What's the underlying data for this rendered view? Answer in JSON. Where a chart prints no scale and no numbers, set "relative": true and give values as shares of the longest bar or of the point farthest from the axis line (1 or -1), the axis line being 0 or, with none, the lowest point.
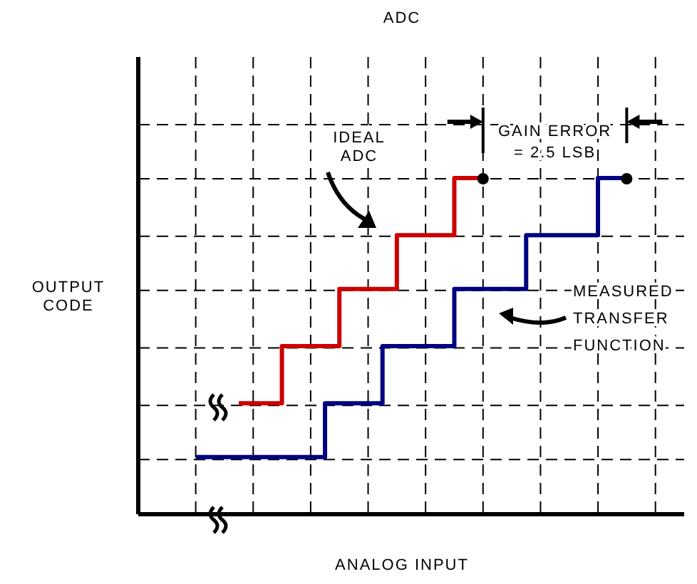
{
  "chart_data": {
    "type": "step",
    "title": "ADC",
    "xlabel": "ANALOG INPUT",
    "ylabel": "OUTPUT CODE",
    "relative": true,
    "categories": [
      null,
      null,
      null,
      null,
      null,
      null,
      null,
      null,
      null,
      null,
      null,
      null,
      null,
      null,
      null,
      null,
      null,
      null,
      null,
      null,
      null,
      null,
      null,
      null,
      null,
      null,
      null,
      null,
      null,
      null,
      null,
      null,
      null,
      null,
      null,
      null,
      null,
      null,
      null
    ],
    "grid": true,
    "marker": "none",
    "line_style": "solid",
    "series": [
      {
        "color": "#cc0000",
        "values": [
          null,
          null,
          null,
          null,
          null,
          null,
          null,
          0.33,
          0.33,
          0.33,
          0.5,
          0.5,
          0.5,
          0.5,
          0.67,
          0.67,
          0.67,
          0.67,
          0.83,
          0.83,
          0.83,
          0.83,
          1,
          1,
          1,
          null,
          null,
          null,
          null,
          null,
          null,
          null,
          null,
          null,
          null,
          null,
          null,
          null,
          null
        ]
      },
      {
        "color": "#000080",
        "values": [
          null,
          null,
          null,
          null,
          0.17,
          0.17,
          0.17,
          0.17,
          0.17,
          0.17,
          0.17,
          0.17,
          0.17,
          0.33,
          0.33,
          0.33,
          0.33,
          0.5,
          0.5,
          0.5,
          0.5,
          0.5,
          0.67,
          0.67,
          0.67,
          0.67,
          0.67,
          0.83,
          0.83,
          0.83,
          0.83,
          0.83,
          1,
          1,
          1,
          null,
          null,
          null,
          null
        ]
      }
    ],
    "annotations": [
      "GAIN ERROR = 2.5 LSB",
      "IDEAL ADC",
      "MEASURED TRANSFER FUNCTION"
    ]
  }
}
